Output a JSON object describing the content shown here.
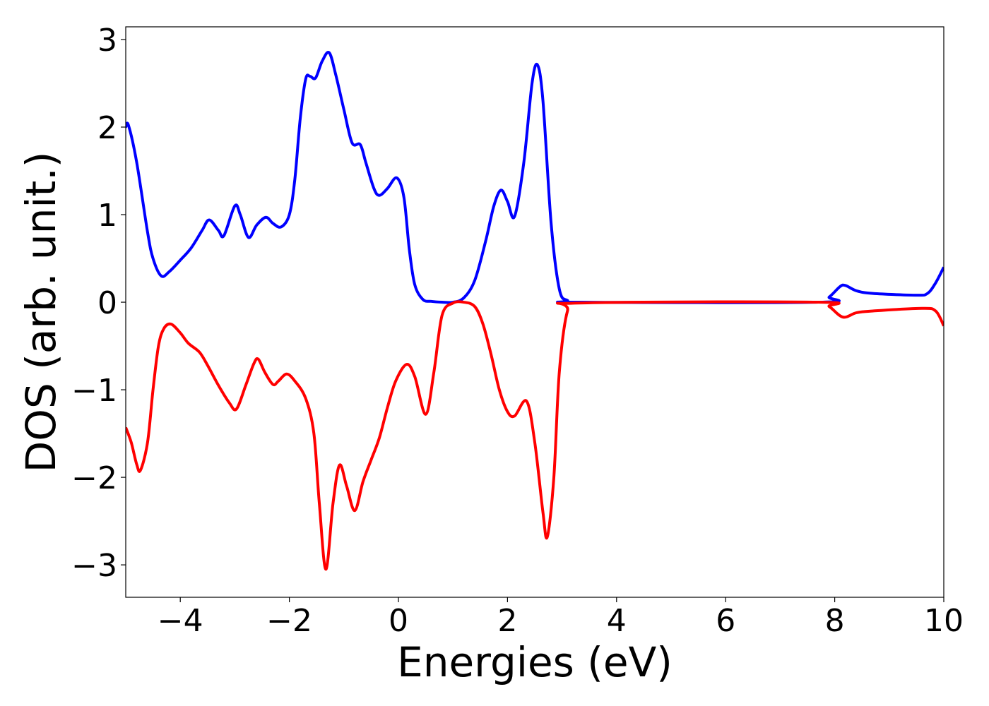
{
  "chart_data": {
    "type": "line",
    "xlabel": "Energies (eV)",
    "ylabel": "DOS (arb. unit.)",
    "xlim": [
      -5,
      10
    ],
    "ylim": [
      -3.37,
      3.145
    ],
    "xticks": [
      {
        "value": -4,
        "label": "−4"
      },
      {
        "value": -2,
        "label": "−2"
      },
      0,
      2,
      4,
      6,
      8,
      10
    ],
    "yticks": [
      {
        "value": -3,
        "label": "−3"
      },
      {
        "value": -2,
        "label": "−2"
      },
      {
        "value": -1,
        "label": "−1"
      },
      0,
      1,
      2,
      3
    ],
    "series": [
      {
        "color": "#0000ff",
        "x": [
          -5,
          -4.95,
          -4.8,
          -4.6,
          -4.5,
          -4.35,
          -4.2,
          -4.0,
          -3.8,
          -3.6,
          -3.47,
          -3.3,
          -3.2,
          -3.0,
          -2.9,
          -2.75,
          -2.6,
          -2.43,
          -2.3,
          -2.15,
          -2.0,
          -1.9,
          -1.8,
          -1.7,
          -1.62,
          -1.52,
          -1.4,
          -1.27,
          -1.15,
          -1.0,
          -0.85,
          -0.7,
          -0.6,
          -0.45,
          -0.35,
          -0.2,
          -0.03,
          0.1,
          0.2,
          0.3,
          0.45,
          0.6,
          0.8,
          1.0,
          1.2,
          1.4,
          1.6,
          1.75,
          1.88,
          2.0,
          2.13,
          2.3,
          2.45,
          2.55,
          2.65,
          2.8,
          2.95,
          3.1,
          3.3,
          7.7,
          7.9,
          8.1,
          8.2,
          8.4,
          8.7,
          9.5,
          9.7,
          9.85,
          10
        ],
        "values": [
          2.0,
          2.02,
          1.6,
          0.8,
          0.5,
          0.3,
          0.35,
          0.48,
          0.62,
          0.82,
          0.94,
          0.82,
          0.76,
          1.1,
          1.0,
          0.74,
          0.88,
          0.97,
          0.9,
          0.86,
          1.0,
          1.4,
          2.1,
          2.55,
          2.58,
          2.56,
          2.75,
          2.85,
          2.6,
          2.2,
          1.82,
          1.8,
          1.6,
          1.3,
          1.22,
          1.3,
          1.42,
          1.2,
          0.6,
          0.2,
          0.03,
          0.01,
          0,
          0,
          0.05,
          0.25,
          0.7,
          1.1,
          1.28,
          1.15,
          0.98,
          1.6,
          2.5,
          2.71,
          2.3,
          0.9,
          0.15,
          0.02,
          0,
          0,
          0.06,
          0.18,
          0.19,
          0.13,
          0.1,
          0.08,
          0.1,
          0.22,
          0.4
        ]
      },
      {
        "color": "#ff0000",
        "x": [
          -5,
          -4.9,
          -4.8,
          -4.73,
          -4.6,
          -4.5,
          -4.4,
          -4.3,
          -4.17,
          -4.0,
          -3.85,
          -3.65,
          -3.5,
          -3.3,
          -3.1,
          -2.97,
          -2.8,
          -2.65,
          -2.57,
          -2.45,
          -2.3,
          -2.2,
          -2.05,
          -1.9,
          -1.7,
          -1.55,
          -1.45,
          -1.33,
          -1.2,
          -1.08,
          -0.95,
          -0.8,
          -0.65,
          -0.5,
          -0.35,
          -0.2,
          -0.05,
          0.15,
          0.3,
          0.5,
          0.65,
          0.8,
          1.0,
          1.2,
          1.4,
          1.55,
          1.7,
          1.85,
          2.0,
          2.13,
          2.35,
          2.5,
          2.65,
          2.73,
          2.85,
          2.95,
          3.1,
          3.3,
          7.7,
          7.9,
          8.15,
          8.4,
          8.7,
          9.6,
          9.85,
          10
        ],
        "values": [
          -1.43,
          -1.6,
          -1.85,
          -1.92,
          -1.6,
          -1.0,
          -0.5,
          -0.3,
          -0.25,
          -0.35,
          -0.47,
          -0.57,
          -0.72,
          -0.95,
          -1.15,
          -1.22,
          -0.95,
          -0.7,
          -0.65,
          -0.8,
          -0.94,
          -0.9,
          -0.82,
          -0.9,
          -1.1,
          -1.5,
          -2.3,
          -3.05,
          -2.3,
          -1.86,
          -2.1,
          -2.38,
          -2.05,
          -1.8,
          -1.55,
          -1.2,
          -0.9,
          -0.71,
          -0.85,
          -1.28,
          -0.8,
          -0.15,
          -0.01,
          0,
          -0.05,
          -0.25,
          -0.6,
          -1.0,
          -1.25,
          -1.3,
          -1.13,
          -1.6,
          -2.4,
          -2.68,
          -2.0,
          -0.8,
          -0.1,
          -0.01,
          0,
          -0.05,
          -0.17,
          -0.12,
          -0.1,
          -0.07,
          -0.1,
          -0.27
        ]
      }
    ]
  }
}
